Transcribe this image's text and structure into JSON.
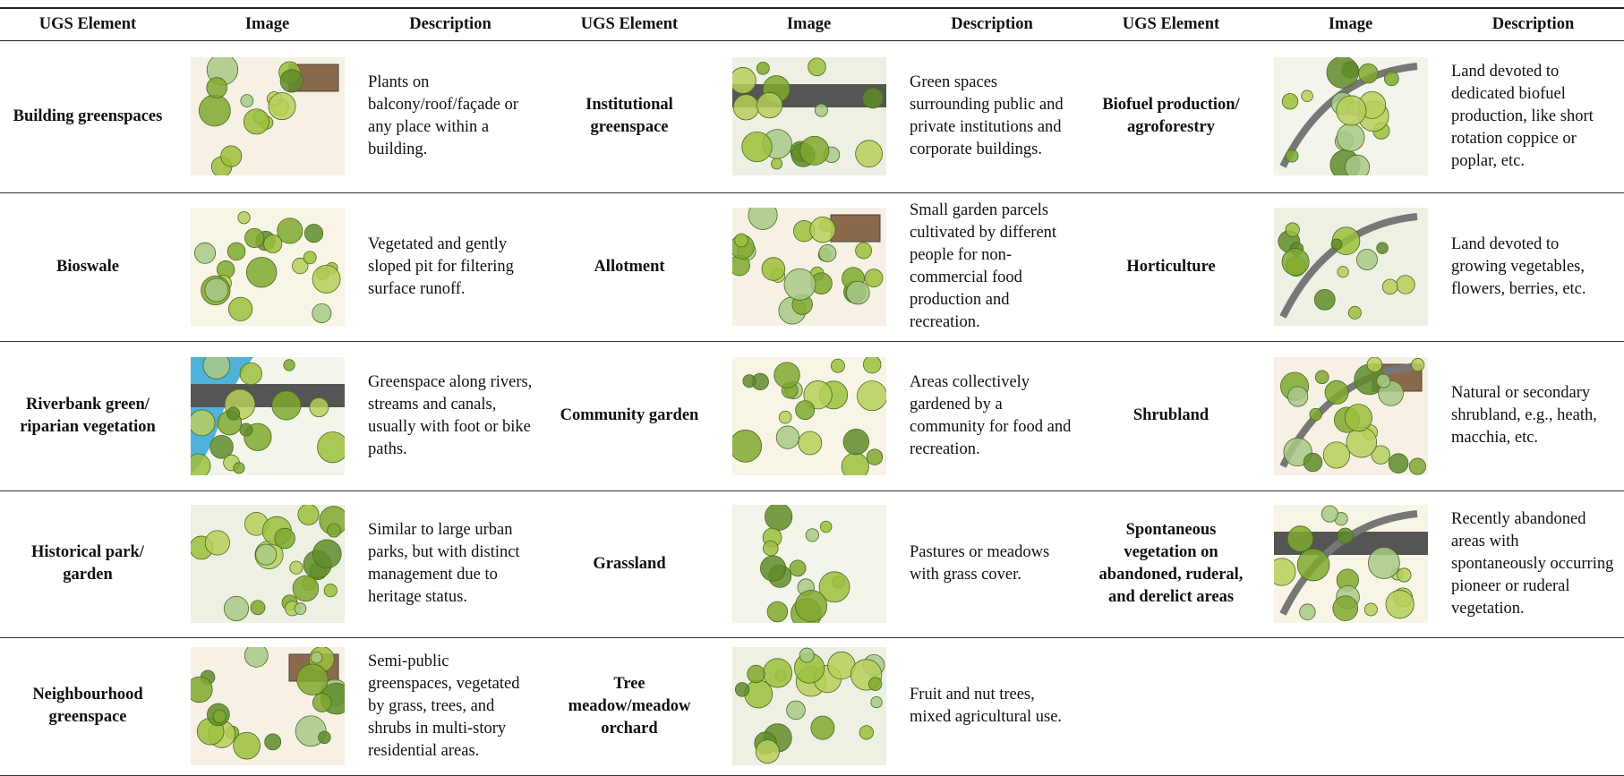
{
  "header": {
    "columns": [
      "UGS Element",
      "Image",
      "Description",
      "UGS Element",
      "Image",
      "Description",
      "UGS Element",
      "Image",
      "Description"
    ]
  },
  "table": {
    "rows": [
      [
        {
          "element": "Building greenspaces",
          "description": "Plants on balcony/roof/façade or any place within a building."
        },
        {
          "element": "Institutional greenspace",
          "description": "Green spaces surrounding public and private institutions and corporate buildings."
        },
        {
          "element": "Biofuel production/ agroforestry",
          "description": "Land devoted to dedicated biofuel production, like short rotation coppice or poplar, etc."
        }
      ],
      [
        {
          "element": "Bioswale",
          "description": "Vegetated and gently sloped pit for filtering surface runoff."
        },
        {
          "element": "Allotment",
          "description": "Small garden parcels cultivated by different people for non-commercial food production and recreation."
        },
        {
          "element": "Horticulture",
          "description": "Land devoted to growing vegetables, flowers, berries, etc."
        }
      ],
      [
        {
          "element": "Riverbank green/ riparian vegetation",
          "description": "Greenspace along rivers, streams and canals, usually with foot or bike paths."
        },
        {
          "element": "Community garden",
          "description": "Areas collectively gardened by a community for food and recreation."
        },
        {
          "element": "Shrubland",
          "description": "Natural or secondary shrubland, e.g., heath, macchia, etc."
        }
      ],
      [
        {
          "element": "Historical park/ garden",
          "description": "Similar to large urban parks, but with distinct management due to heritage status."
        },
        {
          "element": "Grassland",
          "description": "Pastures or meadows with grass cover."
        },
        {
          "element": "Spontaneous vegetation on abandoned, ruderal, and derelict areas",
          "description": "Recently abandoned areas with spontaneously occurring pioneer or ruderal vegetation."
        }
      ],
      [
        {
          "element": "Neighbourhood greenspace",
          "description": "Semi-public greenspaces, vegetated by grass, trees, and shrubs in multi-story residential areas."
        },
        {
          "element": "Tree meadow/meadow orchard",
          "description": "Fruit and nut trees, mixed agricultural use."
        }
      ]
    ]
  }
}
